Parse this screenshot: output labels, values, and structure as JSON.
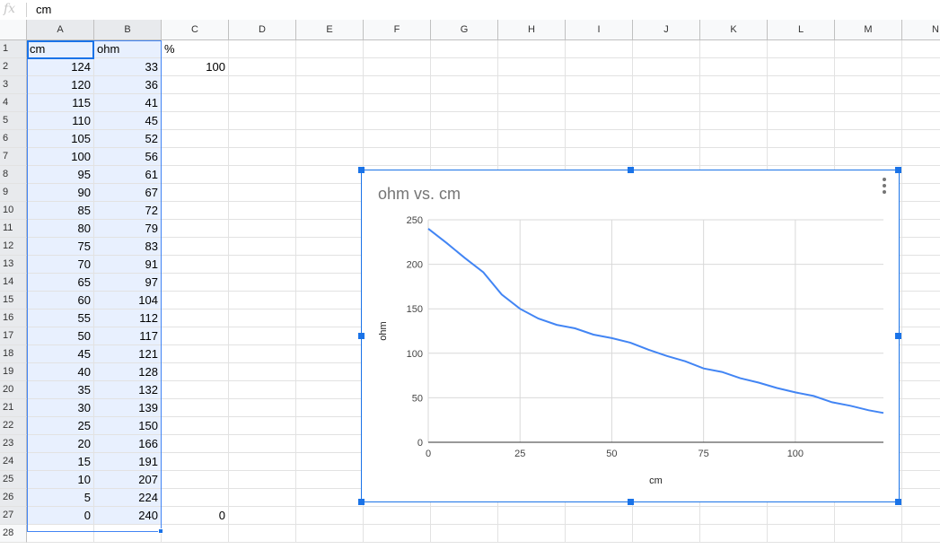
{
  "formula_bar": {
    "icon": "fx",
    "value": "cm"
  },
  "columns": [
    "A",
    "B",
    "C",
    "D",
    "E",
    "F",
    "G",
    "H",
    "I",
    "J",
    "K",
    "L",
    "M",
    "N"
  ],
  "rows": [
    "1",
    "2",
    "3",
    "4",
    "5",
    "6",
    "7",
    "8",
    "9",
    "10",
    "11",
    "12",
    "13",
    "14",
    "15",
    "16",
    "17",
    "18",
    "19",
    "20",
    "21",
    "22",
    "23",
    "24",
    "25",
    "26",
    "27",
    "28"
  ],
  "cells": {
    "A": [
      "cm",
      "124",
      "120",
      "115",
      "110",
      "105",
      "100",
      "95",
      "90",
      "85",
      "80",
      "75",
      "70",
      "65",
      "60",
      "55",
      "50",
      "45",
      "40",
      "35",
      "30",
      "25",
      "20",
      "15",
      "10",
      "5",
      "0"
    ],
    "B": [
      "ohm",
      "33",
      "36",
      "41",
      "45",
      "52",
      "56",
      "61",
      "67",
      "72",
      "79",
      "83",
      "91",
      "97",
      "104",
      "112",
      "117",
      "121",
      "128",
      "132",
      "139",
      "150",
      "166",
      "191",
      "207",
      "224",
      "240"
    ],
    "C": {
      "1": "%",
      "2": "100",
      "27": "0"
    }
  },
  "selection": {
    "range": "A1:B27",
    "active": "A1"
  },
  "colors": {
    "accent": "#1a73e8",
    "series": "#4285f4",
    "selected_fill": "#e8f0fe"
  },
  "chart_data": {
    "type": "line",
    "title": "ohm vs. cm",
    "xlabel": "cm",
    "ylabel": "ohm",
    "x": [
      0,
      5,
      10,
      15,
      20,
      25,
      30,
      35,
      40,
      45,
      50,
      55,
      60,
      65,
      70,
      75,
      80,
      85,
      90,
      95,
      100,
      105,
      110,
      115,
      120,
      124
    ],
    "series": [
      {
        "values": [
          240,
          224,
          207,
          191,
          166,
          150,
          139,
          132,
          128,
          121,
          117,
          112,
          104,
          97,
          91,
          83,
          79,
          72,
          67,
          61,
          56,
          52,
          45,
          41,
          36,
          33
        ]
      }
    ],
    "xticks": [
      "0",
      "25",
      "50",
      "75",
      "100"
    ],
    "yticks": [
      "0",
      "50",
      "100",
      "150",
      "200",
      "250"
    ],
    "xlim": [
      0,
      124
    ],
    "ylim": [
      0,
      250
    ],
    "grid": true,
    "legend": "none"
  }
}
